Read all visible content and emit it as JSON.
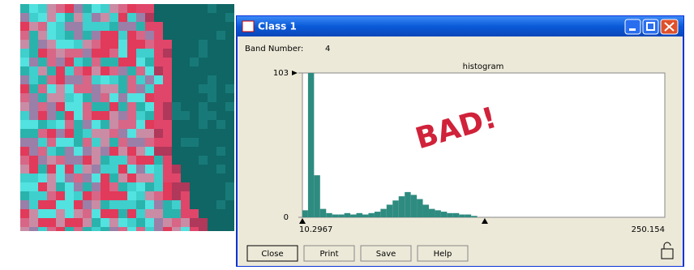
{
  "window": {
    "title": "Class 1",
    "band_label": "Band Number:",
    "band_value": 4,
    "buttons": [
      "Close",
      "Print",
      "Save",
      "Help"
    ]
  },
  "histogram": {
    "title": "histogram",
    "annotation": "BAD!",
    "color": "#2e8b80",
    "ylim": [
      0,
      103
    ],
    "yticks": [
      0,
      103
    ],
    "xlim": [
      10.2967,
      250.154
    ],
    "xticks": [
      10.2967,
      250.154
    ],
    "markers": [
      10.2967,
      131
    ],
    "bins": [
      10,
      14,
      18,
      22,
      26,
      30,
      34,
      38,
      42,
      46,
      50,
      54,
      58,
      62,
      66,
      70,
      74,
      78,
      82,
      86,
      90,
      94,
      98,
      102,
      106,
      110,
      114,
      118,
      122,
      126,
      130,
      134,
      138,
      142,
      146,
      150,
      154,
      158,
      162,
      166,
      170,
      174,
      178,
      182,
      186,
      190,
      194,
      198,
      202,
      206,
      210,
      214,
      218,
      222,
      226,
      230,
      234,
      238,
      242,
      246,
      250
    ],
    "counts": [
      5,
      103,
      30,
      6,
      3,
      2,
      2,
      3,
      2,
      3,
      2,
      3,
      4,
      6,
      9,
      12,
      15,
      18,
      16,
      13,
      9,
      6,
      5,
      4,
      3,
      3,
      2,
      2,
      1,
      0,
      0,
      0,
      0,
      0,
      0,
      0,
      0,
      0,
      0,
      0,
      0,
      0,
      0,
      0,
      0,
      0,
      0,
      0,
      0,
      0,
      0,
      0,
      0,
      0,
      0,
      0,
      0,
      0,
      0,
      0
    ]
  }
}
